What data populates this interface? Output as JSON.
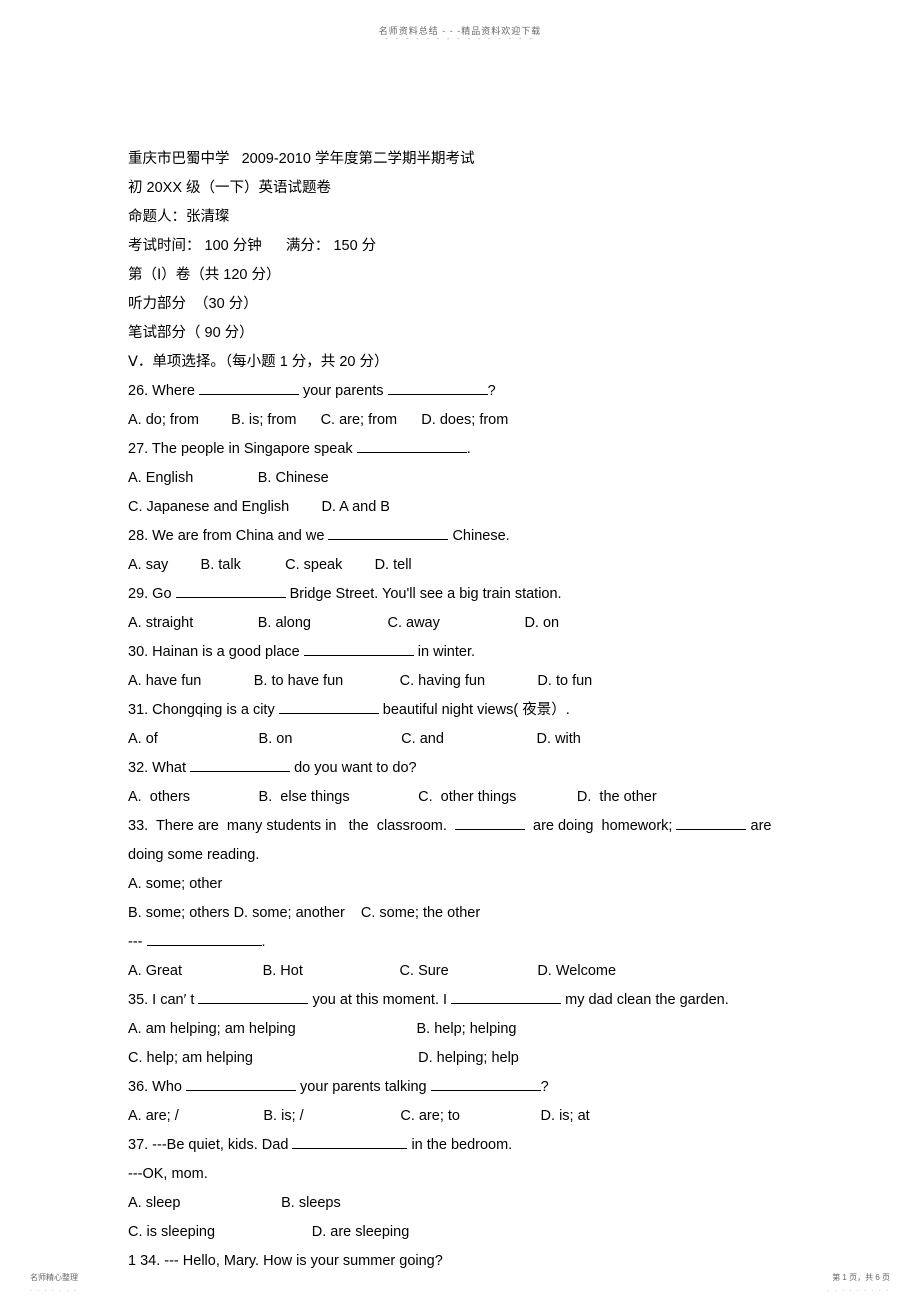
{
  "header": {
    "text": "名师资料总结 - - -精品资料欢迎下载",
    "dots": "- - - - - - - - - - - - - - -"
  },
  "title": {
    "line1": "重庆市巴蜀中学   2009-2010 学年度第二学期半期考试",
    "line2": "初 20XX 级（一下）英语试题卷",
    "line3": "命题人：张清璨",
    "line4": "考试时间： 100 分钟      满分： 150 分",
    "line5": "第（Ⅰ）卷（共 120 分）",
    "line6": "听力部分  （30 分）",
    "line7": "笔试部分（ 90 分）",
    "line8": "Ⅴ．单项选择。（每小题 1 分，共 20 分）"
  },
  "questions": {
    "q26_pre": "26. Where ",
    "q26_mid": " your parents ",
    "q26_post": "?",
    "q26_opts": "A. do; from        B. is; from      C. are; from      D. does; from",
    "q27_pre": "27. The people in Singapore speak ",
    "q27_post": ".",
    "q27_opts1": "A. English                B. Chinese",
    "q27_opts2": "C. Japanese and English        D. A and B",
    "q28_pre": "28. We are from China and we ",
    "q28_post": " Chinese.",
    "q28_opts": "A. say        B. talk           C. speak        D. tell",
    "q29_pre": "29. Go ",
    "q29_post": " Bridge Street. You'll see a big train station.",
    "q29_opts": "A. straight                B. along                   C. away                     D. on",
    "q30_pre": "30. Hainan is a good place ",
    "q30_post": " in winter.",
    "q30_opts": "A. have fun             B. to have fun              C. having fun             D. to fun",
    "q31_pre": "31. Chongqing is a city ",
    "q31_post": " beautiful night views( 夜景）.",
    "q31_opts": "A. of                         B. on                           C. and                       D. with",
    "q32_pre": "32. What ",
    "q32_post": " do you want to do?",
    "q32_opts": "A.  others                 B.  else things                 C.  other things               D.  the other",
    "q33_pre": "33.  There are  many students in   the  classroom.  ",
    "q33_mid": "  are doing  homework; ",
    "q33_post": " are",
    "q33_line2": "doing some reading.",
    "q33_opts1": "A. some; other",
    "q33_opts2": "B. some; others D. some; another    C. some; the other",
    "q34dash_pre": "--- ",
    "q34dash_post": ".",
    "q34_opts": "A. Great                    B. Hot                        C. Sure                      D. Welcome",
    "q35_pre": "35. I can′ t ",
    "q35_mid": " you at this moment. I ",
    "q35_post": " my dad clean the garden.",
    "q35_opts1": "A. am helping; am helping                              B. help; helping",
    "q35_opts2": "C. help; am helping                                         D. helping; help",
    "q36_pre": "36. Who ",
    "q36_mid": " your parents talking ",
    "q36_post": "?",
    "q36_opts": "A. are; /                     B. is; /                        C. are; to                    D. is; at",
    "q37_pre": "37. ---Be quiet, kids. Dad ",
    "q37_post": " in the bedroom.",
    "q37_line2": "---OK, mom.",
    "q37_opts1": "A. sleep                         B. sleeps",
    "q37_opts2": "C. is sleeping                        D. are sleeping",
    "q34_bottom": "1 34. --- Hello, Mary. How is your summer going?"
  },
  "footer": {
    "left": "名师精心整理",
    "leftDots": ". . . . . . .",
    "right": "第 1 页，共 6 页",
    "rightDots": ". . . . . . . . ."
  },
  "blanks": {
    "w100": "100px",
    "w110": "110px",
    "w115": "115px",
    "w120": "120px",
    "w85": "85px",
    "w70": "70px"
  }
}
